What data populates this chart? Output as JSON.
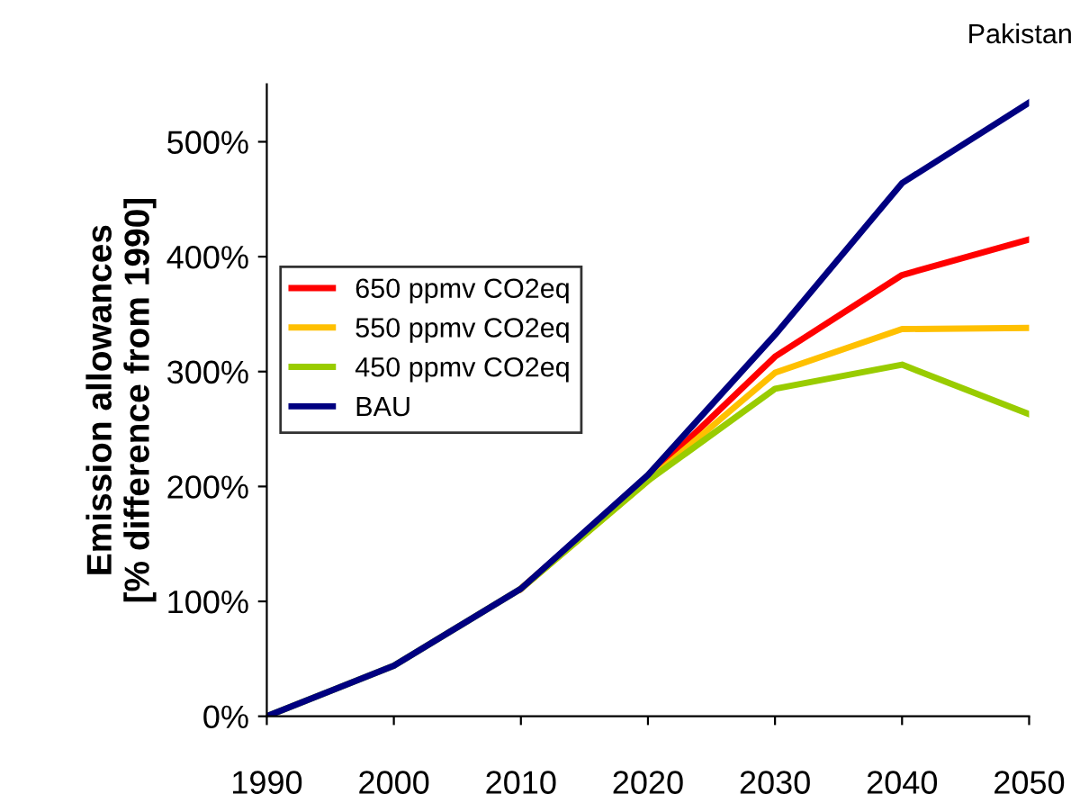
{
  "chart_data": {
    "type": "line",
    "title": "Pakistan",
    "ylabel": "Emission allowances\n[% difference from 1990]",
    "x": [
      1990,
      2000,
      2010,
      2020,
      2030,
      2040,
      2050
    ],
    "series": [
      {
        "name": "650 ppmv CO2eq",
        "color": "#ff0000",
        "values": [
          null,
          null,
          111,
          207,
          313,
          384,
          415
        ]
      },
      {
        "name": "550 ppmv CO2eq",
        "color": "#ffc000",
        "values": [
          null,
          null,
          111,
          205,
          299,
          337,
          338
        ]
      },
      {
        "name": "450 ppmv CO2eq",
        "color": "#99cc00",
        "values": [
          0,
          44,
          111,
          205,
          285,
          306,
          263
        ]
      },
      {
        "name": "BAU",
        "color": "#000080",
        "values": [
          0,
          44,
          111,
          210,
          332,
          464,
          534
        ]
      }
    ],
    "xlim": [
      1990,
      2050
    ],
    "xticks": [
      1990,
      2000,
      2010,
      2020,
      2030,
      2040,
      2050
    ],
    "ylim": [
      0,
      550
    ],
    "yticks": [
      {
        "value": 0,
        "label": "0%"
      },
      {
        "value": 100,
        "label": "100%"
      },
      {
        "value": 200,
        "label": "200%"
      },
      {
        "value": 300,
        "label": "300%"
      },
      {
        "value": 400,
        "label": "400%"
      },
      {
        "value": 500,
        "label": "500%"
      }
    ],
    "grid": false,
    "legend": "left",
    "marker": "none",
    "line_style": "solid"
  }
}
